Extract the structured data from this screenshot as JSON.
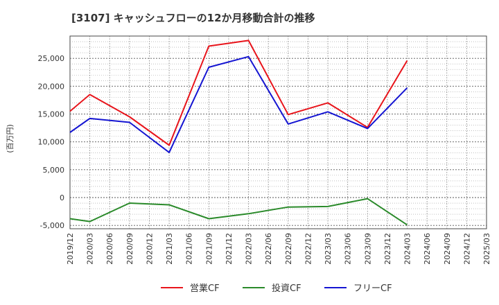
{
  "chart_data": {
    "type": "line",
    "title": "[3107]  キャッシュフローの12か月移動合計の推移",
    "ylabel": "(百万円)",
    "xlabel": "",
    "x_ticks": [
      "2019/12",
      "2020/03",
      "2020/06",
      "2020/09",
      "2020/12",
      "2021/03",
      "2021/06",
      "2021/09",
      "2021/12",
      "2022/03",
      "2022/06",
      "2022/09",
      "2022/12",
      "2023/03",
      "2023/06",
      "2023/09",
      "2023/12",
      "2024/03",
      "2024/06",
      "2024/09",
      "2024/12",
      "2025/03"
    ],
    "y_ticks": [
      -5000,
      0,
      5000,
      10000,
      15000,
      20000,
      25000
    ],
    "y_tick_labels": [
      "-5,000",
      "0",
      "5,000",
      "10,000",
      "15,000",
      "20,000",
      "25,000"
    ],
    "ylim": [
      -5600,
      29000
    ],
    "grid": true,
    "legend_position": "bottom",
    "series": [
      {
        "name": "営業CF",
        "color": "#e8141b",
        "x": [
          "2019/12",
          "2020/03",
          "2020/09",
          "2021/03",
          "2021/09",
          "2022/03",
          "2022/09",
          "2023/03",
          "2023/09",
          "2024/03"
        ],
        "values": [
          15500,
          18500,
          14500,
          9400,
          27200,
          28200,
          14900,
          17000,
          12600,
          24600
        ]
      },
      {
        "name": "投資CF",
        "color": "#2a8a2a",
        "x": [
          "2019/12",
          "2020/03",
          "2020/09",
          "2021/03",
          "2021/09",
          "2022/03",
          "2022/09",
          "2023/03",
          "2023/09",
          "2024/03"
        ],
        "values": [
          -3800,
          -4300,
          -1000,
          -1300,
          -3800,
          -2900,
          -1700,
          -1600,
          -200,
          -4900
        ]
      },
      {
        "name": "フリーCF",
        "color": "#1414d2",
        "x": [
          "2019/12",
          "2020/03",
          "2020/09",
          "2021/03",
          "2021/09",
          "2022/03",
          "2022/09",
          "2023/03",
          "2023/09",
          "2024/03"
        ],
        "values": [
          11700,
          14200,
          13500,
          8100,
          23400,
          25300,
          13200,
          15400,
          12400,
          19700
        ]
      }
    ]
  }
}
